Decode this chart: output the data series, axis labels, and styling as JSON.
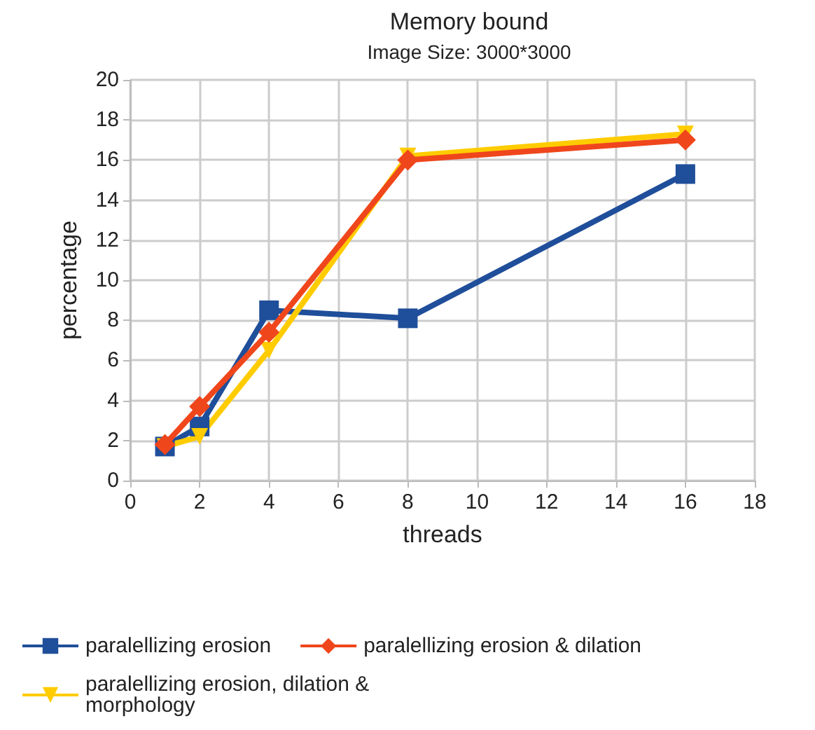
{
  "chart_data": {
    "type": "line",
    "title": "Memory bound",
    "subtitle": "Image Size: 3000*3000",
    "xlabel": "threads",
    "ylabel": "percentage",
    "x": [
      1,
      2,
      4,
      8,
      16
    ],
    "series": [
      {
        "name": "paralellizing erosion",
        "color": "#1f4e9a",
        "values": [
          1.7,
          2.7,
          8.5,
          8.1,
          15.3
        ],
        "marker": "square"
      },
      {
        "name": "paralellizing erosion & dilation",
        "color": "#f0461c",
        "values": [
          1.8,
          3.7,
          7.4,
          16.0,
          17.0
        ],
        "marker": "diamond"
      },
      {
        "name": "paralellizing erosion, dilation & morphology",
        "color": "#ffcc00",
        "values": [
          1.7,
          2.2,
          6.5,
          16.2,
          17.3
        ],
        "marker": "triangle"
      }
    ],
    "xlim": [
      0,
      18
    ],
    "xticks": [
      0,
      2,
      4,
      6,
      8,
      10,
      12,
      14,
      16,
      18
    ],
    "ylim": [
      0,
      20
    ],
    "yticks": [
      0,
      2,
      4,
      6,
      8,
      10,
      12,
      14,
      16,
      18,
      20
    ],
    "grid": true,
    "legend": "bottom"
  }
}
